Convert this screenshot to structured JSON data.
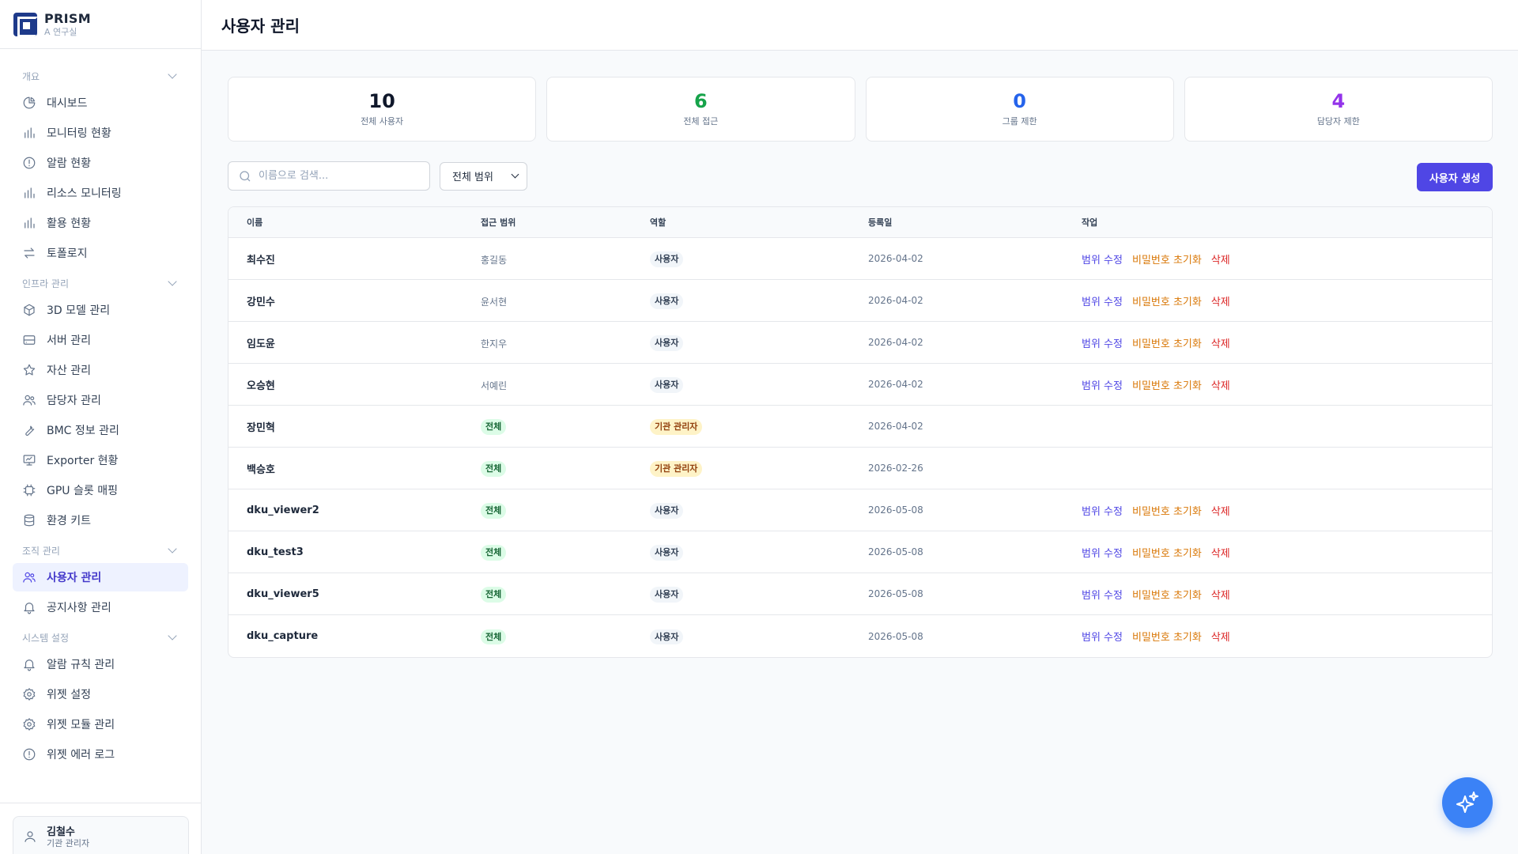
{
  "brand": {
    "name": "PRISM",
    "subtitle": "A 연구실"
  },
  "header": {
    "title": "사용자 관리"
  },
  "sidebar": {
    "sections": [
      {
        "label": "개요",
        "items": [
          {
            "label": "대시보드",
            "icon": "pie-chart-icon"
          },
          {
            "label": "모니터링 현황",
            "icon": "bar-chart-icon"
          },
          {
            "label": "알람 현황",
            "icon": "alert-circle-icon"
          },
          {
            "label": "리소스 모니터링",
            "icon": "bar-chart-icon"
          },
          {
            "label": "활용 현황",
            "icon": "bar-chart-icon"
          },
          {
            "label": "토폴로지",
            "icon": "arrows-icon"
          }
        ]
      },
      {
        "label": "인프라 관리",
        "items": [
          {
            "label": "3D 모델 관리",
            "icon": "cube-icon"
          },
          {
            "label": "서버 관리",
            "icon": "server-icon"
          },
          {
            "label": "자산 관리",
            "icon": "star-icon"
          },
          {
            "label": "담당자 관리",
            "icon": "users-icon"
          },
          {
            "label": "BMC 정보 관리",
            "icon": "wrench-icon"
          },
          {
            "label": "Exporter 현황",
            "icon": "presentation-icon"
          },
          {
            "label": "GPU 슬롯 매핑",
            "icon": "chip-icon"
          },
          {
            "label": "환경 키트",
            "icon": "database-icon"
          }
        ]
      },
      {
        "label": "조직 관리",
        "items": [
          {
            "label": "사용자 관리",
            "icon": "users-icon",
            "active": true
          },
          {
            "label": "공지사항 관리",
            "icon": "bell-icon"
          }
        ]
      },
      {
        "label": "시스템 설정",
        "items": [
          {
            "label": "알람 규칙 관리",
            "icon": "bell-icon"
          },
          {
            "label": "위젯 설정",
            "icon": "gear-icon"
          },
          {
            "label": "위젯 모듈 관리",
            "icon": "gear-icon"
          },
          {
            "label": "위젯 에러 로그",
            "icon": "alert-circle-icon"
          }
        ]
      }
    ],
    "user": {
      "name": "김철수",
      "role": "기관 관리자",
      "icon": "user-icon"
    }
  },
  "stats": [
    {
      "value": "10",
      "label": "전체 사용자",
      "color": "#0f172a"
    },
    {
      "value": "6",
      "label": "전체 접근",
      "color": "#16a34a"
    },
    {
      "value": "0",
      "label": "그룹 제한",
      "color": "#2563eb"
    },
    {
      "value": "4",
      "label": "담당자 제한",
      "color": "#9333ea"
    }
  ],
  "toolbar": {
    "search_placeholder": "이름으로 검색...",
    "scope_value": "전체 범위",
    "create_label": "사용자 생성"
  },
  "table": {
    "columns": [
      "이름",
      "접근 범위",
      "역할",
      "등록일",
      "작업"
    ],
    "action_labels": {
      "edit": "범위 수정",
      "reset": "비밀번호 초기화",
      "delete": "삭제"
    },
    "rows": [
      {
        "name": "최수진",
        "scope": "홍길동",
        "scope_pill": false,
        "role": "사용자",
        "role_type": "user",
        "date": "2026-04-02",
        "actions": true
      },
      {
        "name": "강민수",
        "scope": "윤서현",
        "scope_pill": false,
        "role": "사용자",
        "role_type": "user",
        "date": "2026-04-02",
        "actions": true
      },
      {
        "name": "임도윤",
        "scope": "한지우",
        "scope_pill": false,
        "role": "사용자",
        "role_type": "user",
        "date": "2026-04-02",
        "actions": true
      },
      {
        "name": "오승현",
        "scope": "서예린",
        "scope_pill": false,
        "role": "사용자",
        "role_type": "user",
        "date": "2026-04-02",
        "actions": true
      },
      {
        "name": "장민혁",
        "scope": "전체",
        "scope_pill": true,
        "role": "기관 관리자",
        "role_type": "admin",
        "date": "2026-04-02",
        "actions": false
      },
      {
        "name": "백승호",
        "scope": "전체",
        "scope_pill": true,
        "role": "기관 관리자",
        "role_type": "admin",
        "date": "2026-02-26",
        "actions": false
      },
      {
        "name": "dku_viewer2",
        "scope": "전체",
        "scope_pill": true,
        "role": "사용자",
        "role_type": "user",
        "date": "2026-05-08",
        "actions": true
      },
      {
        "name": "dku_test3",
        "scope": "전체",
        "scope_pill": true,
        "role": "사용자",
        "role_type": "user",
        "date": "2026-05-08",
        "actions": true
      },
      {
        "name": "dku_viewer5",
        "scope": "전체",
        "scope_pill": true,
        "role": "사용자",
        "role_type": "user",
        "date": "2026-05-08",
        "actions": true
      },
      {
        "name": "dku_capture",
        "scope": "전체",
        "scope_pill": true,
        "role": "사용자",
        "role_type": "user",
        "date": "2026-05-08",
        "actions": true
      }
    ]
  },
  "fab": {
    "icon": "sparkles-icon"
  }
}
